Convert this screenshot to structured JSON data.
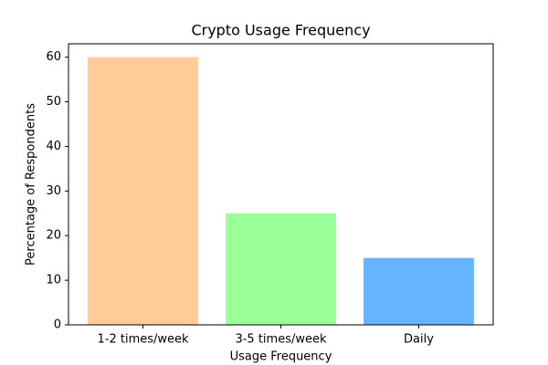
{
  "chart_data": {
    "type": "bar",
    "title": "Crypto Usage Frequency",
    "x_label": "Usage Frequency",
    "y_label": "Percentage of Respondents",
    "categories": [
      "1-2 times/week",
      "3-5 times/week",
      "Daily"
    ],
    "values": [
      60,
      25,
      15
    ],
    "colors": [
      "#ffcc99",
      "#99ff99",
      "#66b3ff"
    ],
    "ylim": [
      0,
      63
    ],
    "yticks": [
      0,
      10,
      20,
      30,
      40,
      50,
      60
    ],
    "grid": false
  }
}
